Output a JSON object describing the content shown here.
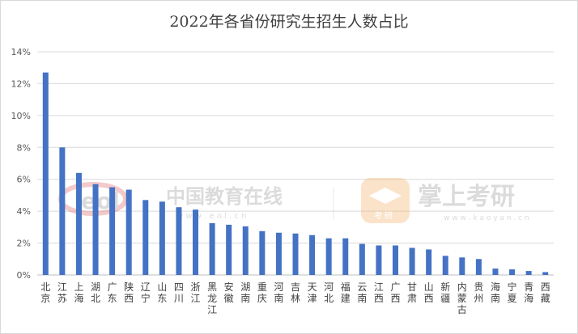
{
  "chart_data": {
    "type": "bar",
    "title": "2022年各省份研究生招生人数占比",
    "categories": [
      "北京",
      "江苏",
      "上海",
      "湖北",
      "广东",
      "陕西",
      "辽宁",
      "山东",
      "四川",
      "浙江",
      "黑龙江",
      "安徽",
      "湖南",
      "重庆",
      "河南",
      "吉林",
      "天津",
      "河北",
      "福建",
      "云南",
      "江西",
      "广西",
      "甘肃",
      "山西",
      "新疆",
      "内蒙古",
      "贵州",
      "海南",
      "宁夏",
      "青海",
      "西藏"
    ],
    "values": [
      12.7,
      8.0,
      6.4,
      5.7,
      5.5,
      5.35,
      4.7,
      4.6,
      4.25,
      4.1,
      3.25,
      3.15,
      3.05,
      2.75,
      2.65,
      2.6,
      2.5,
      2.3,
      2.3,
      1.95,
      1.85,
      1.85,
      1.7,
      1.6,
      1.2,
      1.1,
      1.0,
      0.4,
      0.35,
      0.25,
      0.18
    ],
    "ylim": [
      0,
      14
    ],
    "yticks": [
      "0%",
      "2%",
      "4%",
      "6%",
      "8%",
      "10%",
      "12%",
      "14%"
    ],
    "grid": true,
    "bar_color": "#4472c4"
  },
  "watermark": {
    "left_text": "中国教育在线",
    "left_url": "w w w . e o l . c n",
    "right_text": "掌上考研",
    "right_url": "w w w . k a o y a n . c n",
    "right_badge": "考 研"
  }
}
